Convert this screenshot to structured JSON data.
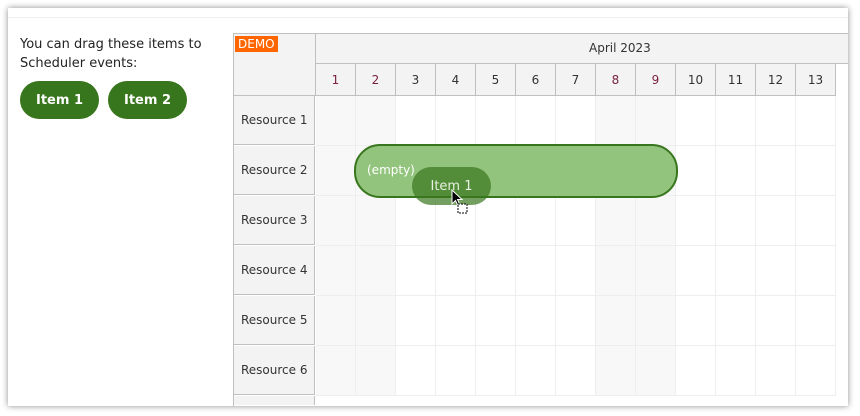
{
  "intro": "You can drag these items to Scheduler events:",
  "items": [
    "Item 1",
    "Item 2"
  ],
  "scheduler": {
    "demo_badge": "DEMO",
    "month": "April 2023",
    "days": [
      "1",
      "2",
      "3",
      "4",
      "5",
      "6",
      "7",
      "8",
      "9",
      "10",
      "11",
      "12",
      "13"
    ],
    "weekend_days": [
      "1",
      "2",
      "8",
      "9"
    ],
    "resources": [
      "Resource 1",
      "Resource 2",
      "Resource 3",
      "Resource 4",
      "Resource 5",
      "Resource 6"
    ],
    "event": {
      "text": "(empty)",
      "resource": "Resource 2",
      "start_day": "2",
      "end_day": "9"
    },
    "drag_item": "Item 1"
  },
  "colors": {
    "item": "#38761d",
    "event": "#93c47d",
    "demo": "#ff6600"
  }
}
